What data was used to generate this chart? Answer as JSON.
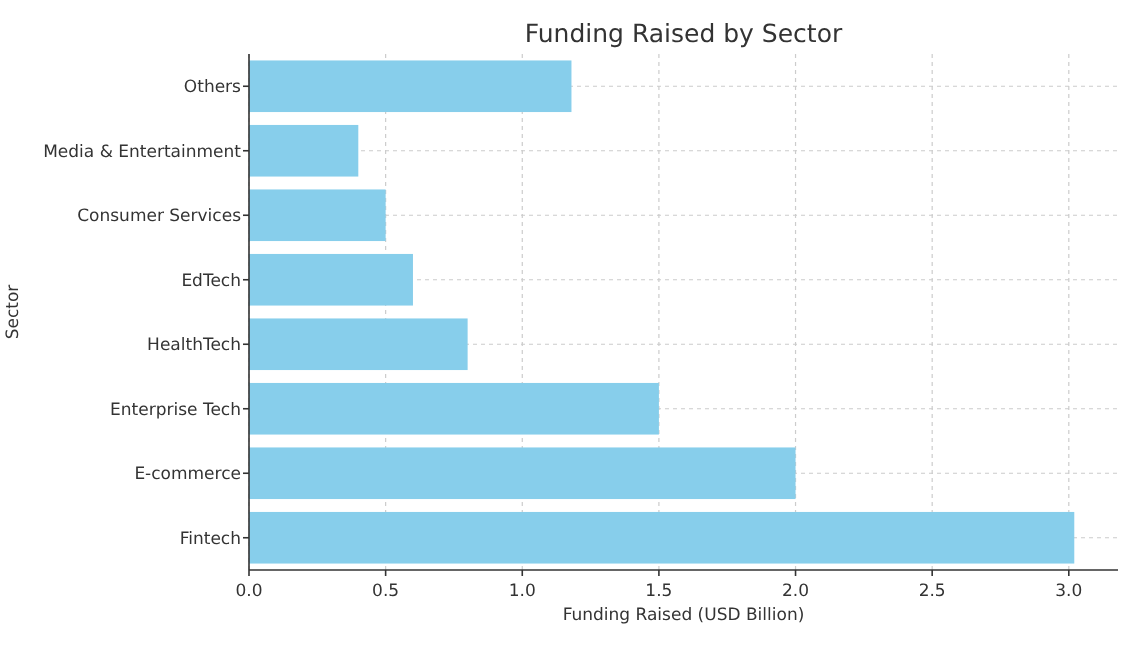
{
  "chart_data": {
    "type": "bar",
    "orientation": "horizontal",
    "title": "Funding Raised by Sector",
    "xlabel": "Funding Raised (USD Billion)",
    "ylabel": "Sector",
    "categories": [
      "Others",
      "Media & Entertainment",
      "Consumer Services",
      "EdTech",
      "HealthTech",
      "Enterprise Tech",
      "E-commerce",
      "Fintech"
    ],
    "values": [
      1.18,
      0.4,
      0.5,
      0.6,
      0.8,
      1.5,
      2.0,
      3.02
    ],
    "color": "#87ceeb",
    "xlim": [
      0,
      3.18
    ],
    "xticks": [
      {
        "value": 0,
        "label": "0.0"
      },
      {
        "value": 0.5,
        "label": "0.5"
      },
      {
        "value": 1,
        "label": "1.0"
      },
      {
        "value": 1.5,
        "label": "1.5"
      },
      {
        "value": 2,
        "label": "2.0"
      },
      {
        "value": 2.5,
        "label": "2.5"
      },
      {
        "value": 3,
        "label": "3.0"
      }
    ],
    "grid": true
  }
}
